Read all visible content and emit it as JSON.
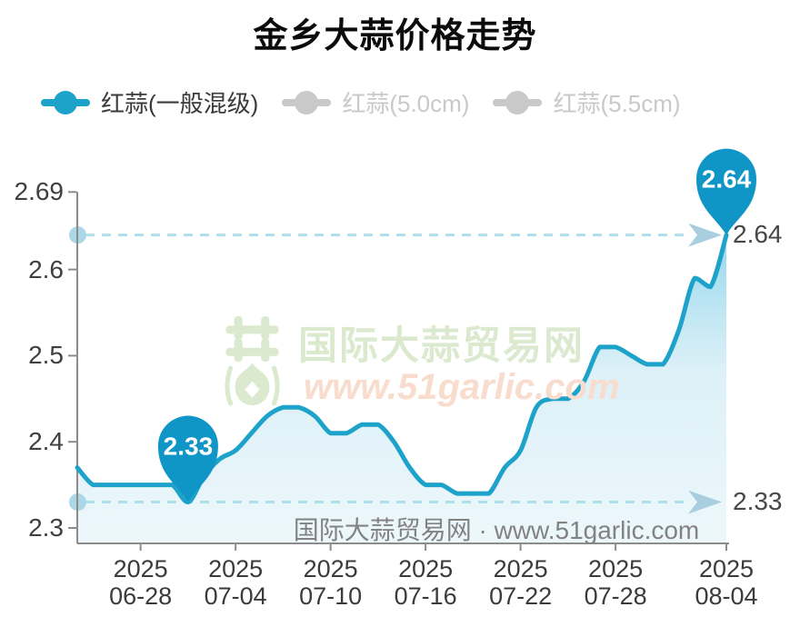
{
  "title": "金乡大蒜价格走势",
  "legend": {
    "items": [
      {
        "label": "红蒜(一般混级)",
        "active": true
      },
      {
        "label": "红蒜(5.0cm)",
        "active": false
      },
      {
        "label": "红蒜(5.5cm)",
        "active": false
      }
    ]
  },
  "watermark": {
    "site_name": "国际大蒜贸易网",
    "site_url": "www.51garlic.com",
    "logo": "garlic-bulb-logo"
  },
  "footer": {
    "text": "国际大蒜贸易网 · www.51garlic.com"
  },
  "colors": {
    "series": "#1da2ca",
    "marker_fill": "#1096c6",
    "legend_inactive": "#c9c9c9",
    "legend_active_text": "#3a3a3a",
    "axis": "#8c8c8c",
    "dash_line": "#aedfec",
    "dash_accent": "#a9cedf",
    "area_top": "#8ed5ec",
    "area_bottom": "#ecf7fb"
  },
  "chart_data": {
    "type": "line",
    "title": "金乡大蒜价格走势",
    "series_name": "红蒜(一般混级)",
    "smooth": true,
    "grid": false,
    "legend_position": "top",
    "inactive_series": [
      "红蒜(5.0cm)",
      "红蒜(5.5cm)"
    ],
    "x_year": "2025",
    "x": [
      "06-24",
      "06-25",
      "06-26",
      "06-27",
      "06-28",
      "06-29",
      "06-30",
      "07-01",
      "07-02",
      "07-03",
      "07-04",
      "07-05",
      "07-06",
      "07-07",
      "07-08",
      "07-09",
      "07-10",
      "07-11",
      "07-12",
      "07-13",
      "07-14",
      "07-15",
      "07-16",
      "07-17",
      "07-18",
      "07-19",
      "07-20",
      "07-21",
      "07-22",
      "07-23",
      "07-24",
      "07-25",
      "07-26",
      "07-27",
      "07-28",
      "07-29",
      "07-30",
      "07-31",
      "08-01",
      "08-02",
      "08-03",
      "08-04"
    ],
    "values": [
      2.37,
      2.35,
      2.35,
      2.35,
      2.35,
      2.35,
      2.35,
      2.33,
      2.36,
      2.38,
      2.39,
      2.41,
      2.43,
      2.44,
      2.44,
      2.43,
      2.41,
      2.41,
      2.42,
      2.42,
      2.4,
      2.37,
      2.35,
      2.35,
      2.34,
      2.34,
      2.34,
      2.37,
      2.39,
      2.44,
      2.45,
      2.45,
      2.47,
      2.51,
      2.51,
      2.5,
      2.49,
      2.49,
      2.53,
      2.59,
      2.58,
      2.64
    ],
    "ylim": [
      2.28,
      2.69
    ],
    "y_ticks": [
      {
        "value": 2.3,
        "label": "2.3"
      },
      {
        "value": 2.4,
        "label": "2.4"
      },
      {
        "value": 2.5,
        "label": "2.5"
      },
      {
        "value": 2.6,
        "label": "2.6"
      },
      {
        "value": 2.69,
        "label": "2.69"
      }
    ],
    "x_ticks": [
      {
        "index": 4,
        "year": "2025",
        "label": "06-28"
      },
      {
        "index": 10,
        "year": "2025",
        "label": "07-04"
      },
      {
        "index": 16,
        "year": "2025",
        "label": "07-10"
      },
      {
        "index": 22,
        "year": "2025",
        "label": "07-16"
      },
      {
        "index": 28,
        "year": "2025",
        "label": "07-22"
      },
      {
        "index": 34,
        "year": "2025",
        "label": "07-28"
      },
      {
        "index": 41,
        "year": "2025",
        "label": "08-04"
      }
    ],
    "annotations": {
      "markers": [
        {
          "type": "min",
          "index": 7,
          "value": 2.33,
          "label": "2.33"
        },
        {
          "type": "max",
          "index": 41,
          "value": 2.64,
          "label": "2.64"
        }
      ],
      "ref_lines": [
        {
          "value": 2.64,
          "label": "2.64"
        },
        {
          "value": 2.33,
          "label": "2.33"
        }
      ]
    }
  }
}
